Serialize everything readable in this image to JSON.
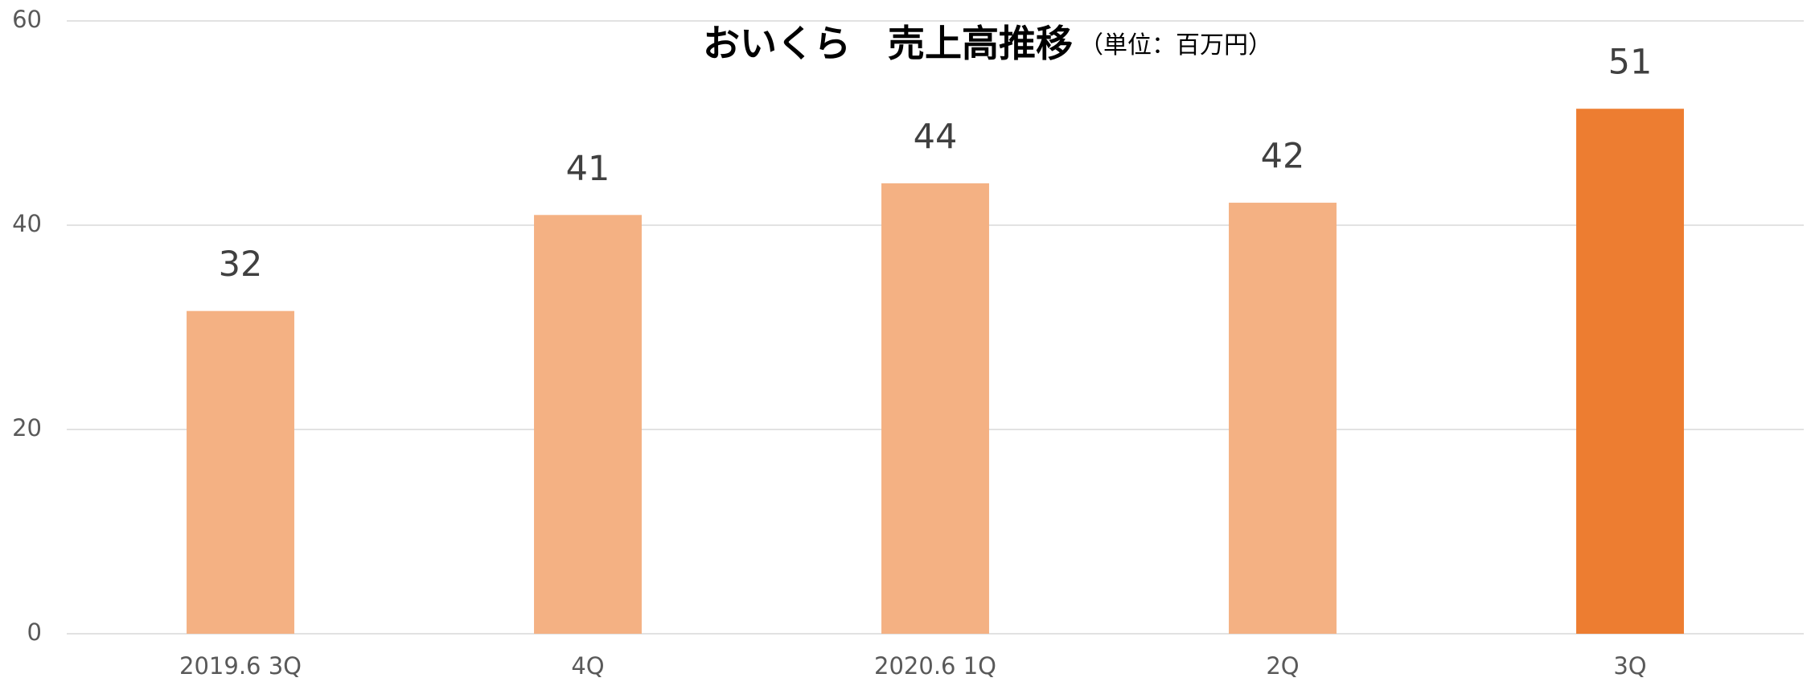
{
  "chart_data": {
    "type": "bar",
    "title": "おいくら　売上高推移",
    "subtitle": "（単位：百万円）",
    "categories": [
      "2019.6 3Q",
      "4Q",
      "2020.6 1Q",
      "2Q",
      "3Q"
    ],
    "values": [
      31.6,
      41.0,
      44.1,
      42.2,
      51.4
    ],
    "value_labels": [
      "32",
      "41",
      "44",
      "42",
      "51"
    ],
    "colors": [
      "#f4b183",
      "#f4b183",
      "#f4b183",
      "#f4b183",
      "#ed7d31"
    ],
    "ylim": [
      0,
      60
    ],
    "yticks": [
      0,
      20,
      40,
      60
    ],
    "grid": true
  }
}
